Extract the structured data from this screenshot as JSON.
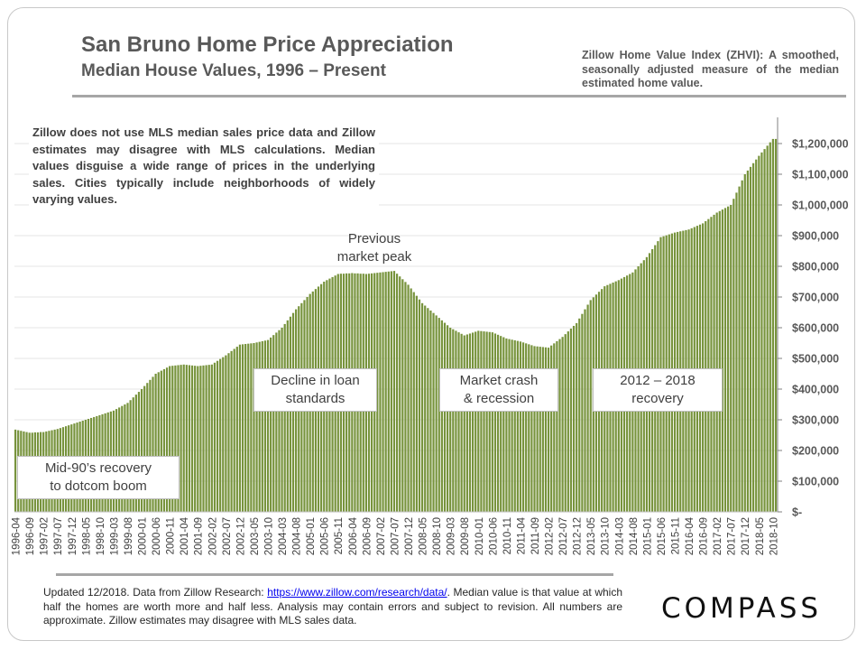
{
  "header": {
    "title": "San Bruno Home Price Appreciation",
    "subtitle": "Median House Values, 1996 – Present",
    "zhvi_note": "Zillow Home Value Index (ZHVI): A smoothed, seasonally adjusted measure of the median estimated home value."
  },
  "disclaimer": "Zillow does not use MLS median sales price data and Zillow estimates may disagree with MLS calculations. Median values disguise a wide range of prices in the underlying sales. Cities typically include neighborhoods of widely varying values.",
  "annotations": {
    "peak_line1": "Previous",
    "peak_line2": "market peak",
    "decline_line1": "Decline in loan",
    "decline_line2": "standards",
    "crash_line1": "Market crash",
    "crash_line2": "& recession",
    "recovery_line1": "2012 – 2018",
    "recovery_line2": "recovery",
    "mid90s_line1": "Mid-90’s recovery",
    "mid90s_line2": "to dotcom boom"
  },
  "footer": {
    "text_before": "Updated 12/2018. Data from Zillow Research: ",
    "link": "https://www.zillow.com/research/data/",
    "text_after": ". Median value is that value at which half the homes are worth more and half less. Analysis may contain errors and subject to revision. All numbers are approximate. Zillow estimates may disagree with MLS sales data."
  },
  "logo": "COMPASS",
  "chart_data": {
    "type": "bar",
    "title": "San Bruno Home Price Appreciation",
    "subtitle": "Median House Values, 1996 – Present",
    "start_month": "1996-04",
    "frequency": "monthly",
    "bar_color": "#77933c",
    "grid": true,
    "ylim": [
      0,
      1200000
    ],
    "y_ticks": [
      0,
      100000,
      200000,
      300000,
      400000,
      500000,
      600000,
      700000,
      800000,
      900000,
      1000000,
      1100000,
      1200000
    ],
    "y_tick_labels": [
      "$-",
      "$100,000",
      "$200,000",
      "$300,000",
      "$400,000",
      "$500,000",
      "$600,000",
      "$700,000",
      "$800,000",
      "$900,000",
      "$1,000,000",
      "$1,100,000",
      "$1,200,000"
    ],
    "x_tick_labels": [
      "1996-04",
      "1996-09",
      "1997-02",
      "1997-07",
      "1997-12",
      "1998-05",
      "1998-10",
      "1999-03",
      "1999-08",
      "2000-01",
      "2000-06",
      "2000-11",
      "2001-04",
      "2001-09",
      "2002-02",
      "2002-07",
      "2002-12",
      "2003-05",
      "2003-10",
      "2004-03",
      "2004-08",
      "2005-01",
      "2005-06",
      "2005-11",
      "2006-04",
      "2006-09",
      "2007-02",
      "2007-07",
      "2007-12",
      "2008-05",
      "2008-10",
      "2009-03",
      "2009-08",
      "2010-01",
      "2010-06",
      "2010-11",
      "2011-04",
      "2011-09",
      "2012-02",
      "2012-07",
      "2012-12",
      "2013-05",
      "2013-10",
      "2014-03",
      "2014-08",
      "2015-01",
      "2015-06",
      "2015-11",
      "2016-04",
      "2016-09",
      "2017-02",
      "2017-07",
      "2017-12",
      "2018-05",
      "2018-10"
    ],
    "values": [
      268000,
      266000,
      264000,
      262000,
      260000,
      258000,
      258000,
      259000,
      259000,
      260000,
      260000,
      262000,
      264000,
      266000,
      268000,
      270000,
      273000,
      276000,
      279000,
      282000,
      285000,
      288000,
      291000,
      294000,
      297000,
      300000,
      303000,
      306000,
      309000,
      312000,
      315000,
      318000,
      321000,
      324000,
      327000,
      330000,
      335000,
      340000,
      345000,
      350000,
      355000,
      364000,
      373000,
      382000,
      391000,
      400000,
      410000,
      420000,
      430000,
      440000,
      450000,
      455000,
      460000,
      465000,
      470000,
      475000,
      476000,
      477000,
      478000,
      479000,
      480000,
      479000,
      478000,
      477000,
      476000,
      475000,
      476000,
      477000,
      478000,
      479000,
      480000,
      486000,
      492000,
      498000,
      504000,
      510000,
      517000,
      524000,
      531000,
      538000,
      545000,
      546000,
      547000,
      548000,
      549000,
      550000,
      552000,
      554000,
      556000,
      558000,
      560000,
      568000,
      576000,
      584000,
      592000,
      600000,
      612000,
      624000,
      636000,
      648000,
      660000,
      670000,
      680000,
      690000,
      700000,
      710000,
      718000,
      726000,
      734000,
      742000,
      750000,
      755000,
      760000,
      765000,
      770000,
      775000,
      776000,
      776000,
      777000,
      777000,
      778000,
      777000,
      777000,
      776000,
      776000,
      775000,
      776000,
      777000,
      778000,
      779000,
      780000,
      781000,
      782000,
      783000,
      784000,
      785000,
      776000,
      767000,
      758000,
      749000,
      740000,
      728000,
      716000,
      704000,
      692000,
      680000,
      672000,
      664000,
      656000,
      648000,
      640000,
      632000,
      624000,
      616000,
      608000,
      600000,
      595000,
      590000,
      585000,
      580000,
      575000,
      578000,
      581000,
      584000,
      587000,
      590000,
      589000,
      588000,
      587000,
      586000,
      585000,
      581000,
      577000,
      573000,
      569000,
      565000,
      563000,
      561000,
      559000,
      557000,
      555000,
      552000,
      549000,
      546000,
      543000,
      540000,
      539000,
      538000,
      537000,
      536000,
      535000,
      542000,
      549000,
      556000,
      563000,
      570000,
      579000,
      588000,
      597000,
      606000,
      615000,
      630000,
      645000,
      660000,
      675000,
      690000,
      699000,
      708000,
      717000,
      726000,
      735000,
      739000,
      743000,
      747000,
      751000,
      755000,
      760000,
      765000,
      770000,
      775000,
      780000,
      790000,
      800000,
      810000,
      820000,
      830000,
      843000,
      856000,
      869000,
      882000,
      895000,
      898000,
      901000,
      904000,
      907000,
      910000,
      912000,
      914000,
      916000,
      918000,
      920000,
      924000,
      928000,
      932000,
      936000,
      940000,
      947000,
      954000,
      961000,
      968000,
      975000,
      980000,
      985000,
      990000,
      995000,
      1000000,
      1020000,
      1040000,
      1060000,
      1080000,
      1100000,
      1112000,
      1124000,
      1136000,
      1148000,
      1160000,
      1171000,
      1182000,
      1193000,
      1204000,
      1215000,
      1215000
    ]
  }
}
